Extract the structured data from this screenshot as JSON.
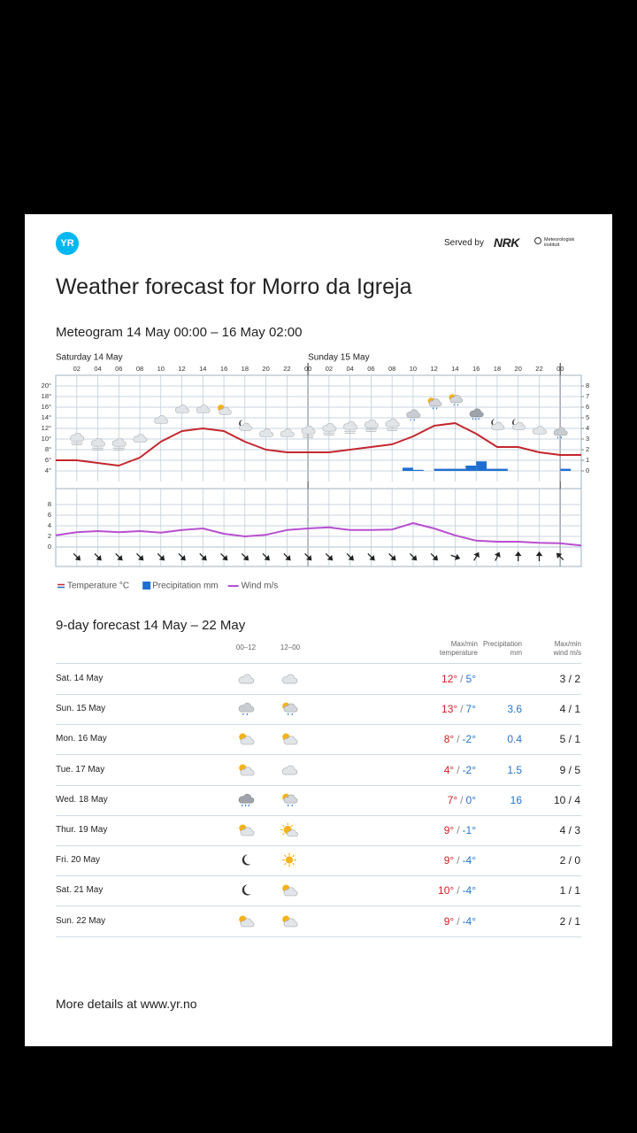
{
  "header": {
    "logo": "YR",
    "served_by": "Served by",
    "nrk": "NRK",
    "met": "Meteorologisk\ninstitutt",
    "title": "Weather forecast for Morro da Igreja"
  },
  "chart_data": {
    "type": "meteogram",
    "title": "Meteogram 14 May 00:00 – 16 May 02:00",
    "days": [
      "Saturday 14 May",
      "Sunday 15 May"
    ],
    "xlim": [
      0,
      50
    ],
    "xticks": [
      {
        "value": 2,
        "label": "02"
      },
      {
        "value": 4,
        "label": "04"
      },
      {
        "value": 6,
        "label": "06"
      },
      {
        "value": 8,
        "label": "08"
      },
      10,
      12,
      14,
      16,
      18,
      20,
      22,
      {
        "value": 24,
        "label": "00"
      },
      {
        "value": 26,
        "label": "02"
      },
      {
        "value": 28,
        "label": "04"
      },
      {
        "value": 30,
        "label": "06"
      },
      {
        "value": 32,
        "label": "08"
      },
      {
        "value": 34,
        "label": "10"
      },
      {
        "value": 36,
        "label": "12"
      },
      {
        "value": 38,
        "label": "14"
      },
      {
        "value": 40,
        "label": "16"
      },
      {
        "value": 42,
        "label": "18"
      },
      {
        "value": 44,
        "label": "20"
      },
      {
        "value": 46,
        "label": "22"
      },
      {
        "value": 48,
        "label": "00"
      }
    ],
    "ylim": [
      2,
      21
    ],
    "yticks": [
      {
        "value": 4,
        "label": "4°"
      },
      {
        "value": 6,
        "label": "6°"
      },
      {
        "value": 8,
        "label": "8°"
      },
      {
        "value": 10,
        "label": "10°"
      },
      {
        "value": 12,
        "label": "12°"
      },
      {
        "value": 14,
        "label": "14°"
      },
      {
        "value": 16,
        "label": "16°"
      },
      {
        "value": 18,
        "label": "18°"
      },
      {
        "value": 20,
        "label": "20°"
      }
    ],
    "y2lim": [
      -1,
      8.5
    ],
    "y2ticks": [
      0,
      1,
      2,
      3,
      4,
      5,
      6,
      7,
      8
    ],
    "y3lim": [
      0,
      9.5
    ],
    "y3ticks": [
      0,
      2,
      4,
      6,
      8
    ],
    "grid": true,
    "series": [
      {
        "name": "Temperature °C",
        "color": "#c4262e",
        "x": [
          0,
          2,
          4,
          6,
          8,
          10,
          12,
          14,
          16,
          18,
          20,
          22,
          24,
          26,
          28,
          30,
          32,
          34,
          36,
          38,
          40,
          42,
          44,
          46,
          48,
          50
        ],
        "values": [
          6,
          6,
          5.5,
          5,
          6.5,
          9.5,
          11.5,
          12,
          11.5,
          9.5,
          8,
          7.5,
          7.5,
          7.5,
          8,
          8.5,
          9,
          10.5,
          12.5,
          13,
          11,
          8.5,
          8.5,
          7.5,
          7,
          7
        ]
      },
      {
        "name": "Precipitation mm",
        "color": "#1f6fd1",
        "axis": "y2",
        "x": [
          33,
          34,
          36,
          37,
          38,
          39,
          40,
          41,
          42,
          48
        ],
        "values": [
          0.3,
          0.1,
          0.2,
          0.2,
          0.2,
          0.5,
          0.9,
          0.2,
          0.2,
          0.2
        ]
      },
      {
        "name": "Wind m/s",
        "color": "#b84fd0",
        "axis": "y3",
        "x": [
          0,
          2,
          4,
          6,
          8,
          10,
          12,
          14,
          16,
          18,
          20,
          22,
          24,
          26,
          28,
          30,
          32,
          34,
          36,
          38,
          40,
          42,
          44,
          46,
          48,
          50
        ],
        "values": [
          2.2,
          2.8,
          3,
          2.8,
          3,
          2.7,
          3.2,
          3.5,
          2.5,
          2,
          2.3,
          3.2,
          3.5,
          3.7,
          3.2,
          3.2,
          3.3,
          4.5,
          3.5,
          2.2,
          1.2,
          1,
          1,
          0.8,
          0.7,
          0.3
        ]
      }
    ],
    "wind_direction": [
      135,
      135,
      135,
      135,
      135,
      135,
      135,
      135,
      135,
      135,
      135,
      135,
      135,
      135,
      135,
      135,
      135,
      135,
      110,
      30,
      25,
      0,
      0,
      315
    ]
  },
  "forecast": {
    "title": "9-day forecast 14 May – 22 May",
    "columns": [
      "00–12",
      "12–00",
      "Max/min\ntemperature",
      "Precipitation\nmm",
      "Max/min\nwind m/s"
    ],
    "separator": "/",
    "rows": [
      {
        "day": "Sat. 14 May",
        "max": "12°",
        "min": "5°",
        "precipitation": null,
        "wind": "3 / 2"
      },
      {
        "day": "Sun. 15 May",
        "max": "13°",
        "min": "7°",
        "precipitation": 3.6,
        "wind": "4 / 1"
      },
      {
        "day": "Mon. 16 May",
        "max": "8°",
        "min": "-2°",
        "precipitation": 0.4,
        "wind": "5 / 1"
      },
      {
        "day": "Tue. 17 May",
        "max": "4°",
        "min": "-2°",
        "precipitation": 1.5,
        "wind": "9 / 5"
      },
      {
        "day": "Wed. 18 May",
        "max": "7°",
        "min": "0°",
        "precipitation": 16,
        "wind": "10 / 4"
      },
      {
        "day": "Thur. 19 May",
        "max": "9°",
        "min": "-1°",
        "precipitation": null,
        "wind": "4 / 3"
      },
      {
        "day": "Fri. 20 May",
        "max": "9°",
        "min": "-4°",
        "precipitation": null,
        "wind": "2 / 0"
      },
      {
        "day": "Sat. 21 May",
        "max": "10°",
        "min": "-4°",
        "precipitation": null,
        "wind": "1 / 1"
      },
      {
        "day": "Sun. 22 May",
        "max": "9°",
        "min": "-4°",
        "precipitation": null,
        "wind": "2 / 1"
      }
    ]
  },
  "footer": "More details at www.yr.no"
}
